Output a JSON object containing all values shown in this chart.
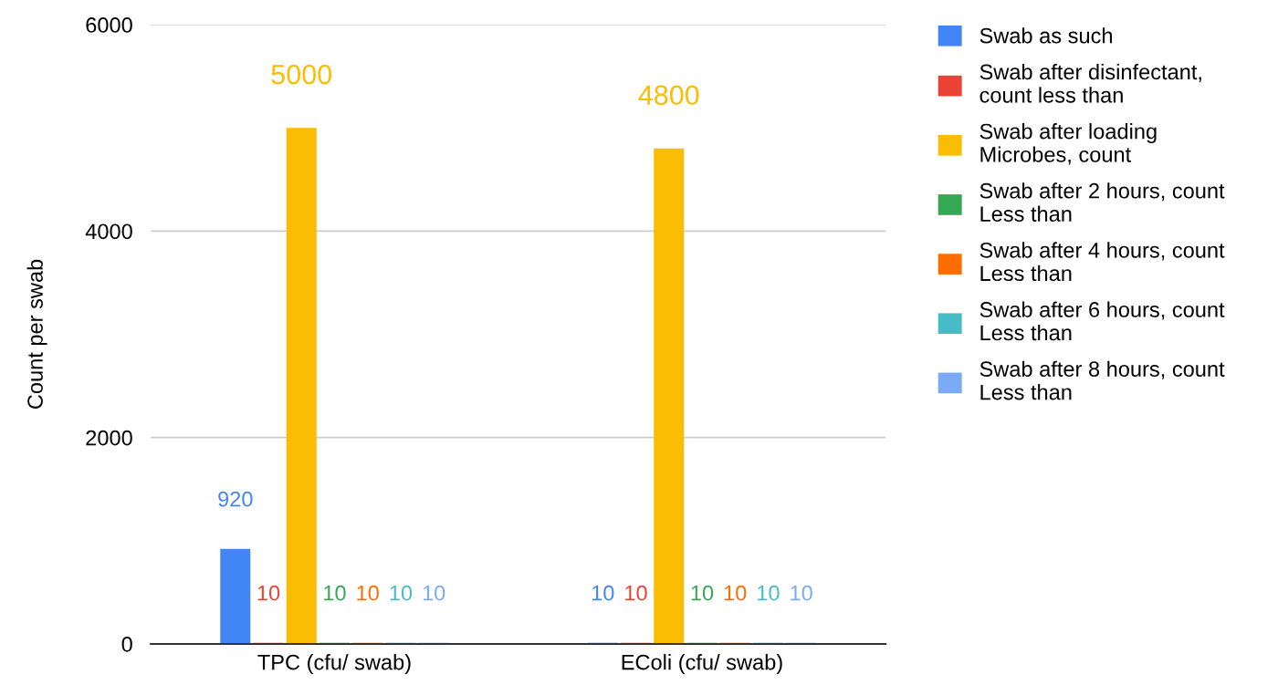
{
  "chart_data": {
    "type": "bar",
    "ylabel": "Count per swab",
    "categories": [
      "TPC (cfu/ swab)",
      "EColi (cfu/ swab)"
    ],
    "series": [
      {
        "name": "Swab as such",
        "color": "#4285f4",
        "values": [
          920,
          10
        ]
      },
      {
        "name": "Swab after disinfectant, count less than",
        "color": "#ea4335",
        "values": [
          10,
          10
        ]
      },
      {
        "name": "Swab after loading Microbes, count",
        "color": "#fbbc04",
        "values": [
          5000,
          4800
        ]
      },
      {
        "name": "Swab after 2 hours, count Less than",
        "color": "#34a853",
        "values": [
          10,
          10
        ]
      },
      {
        "name": "Swab after 4 hours, count Less than",
        "color": "#ff6d01",
        "values": [
          10,
          10
        ]
      },
      {
        "name": "Swab after 6 hours, count Less than",
        "color": "#46bdc6",
        "values": [
          10,
          10
        ]
      },
      {
        "name": "Swab after 8 hours, count Less than",
        "color": "#7baaf7",
        "values": [
          10,
          10
        ]
      }
    ],
    "ylim": [
      0,
      6000
    ],
    "yticks": [
      0,
      2000,
      4000,
      6000
    ],
    "grid": "y",
    "legend": "right",
    "data_labels": true
  }
}
